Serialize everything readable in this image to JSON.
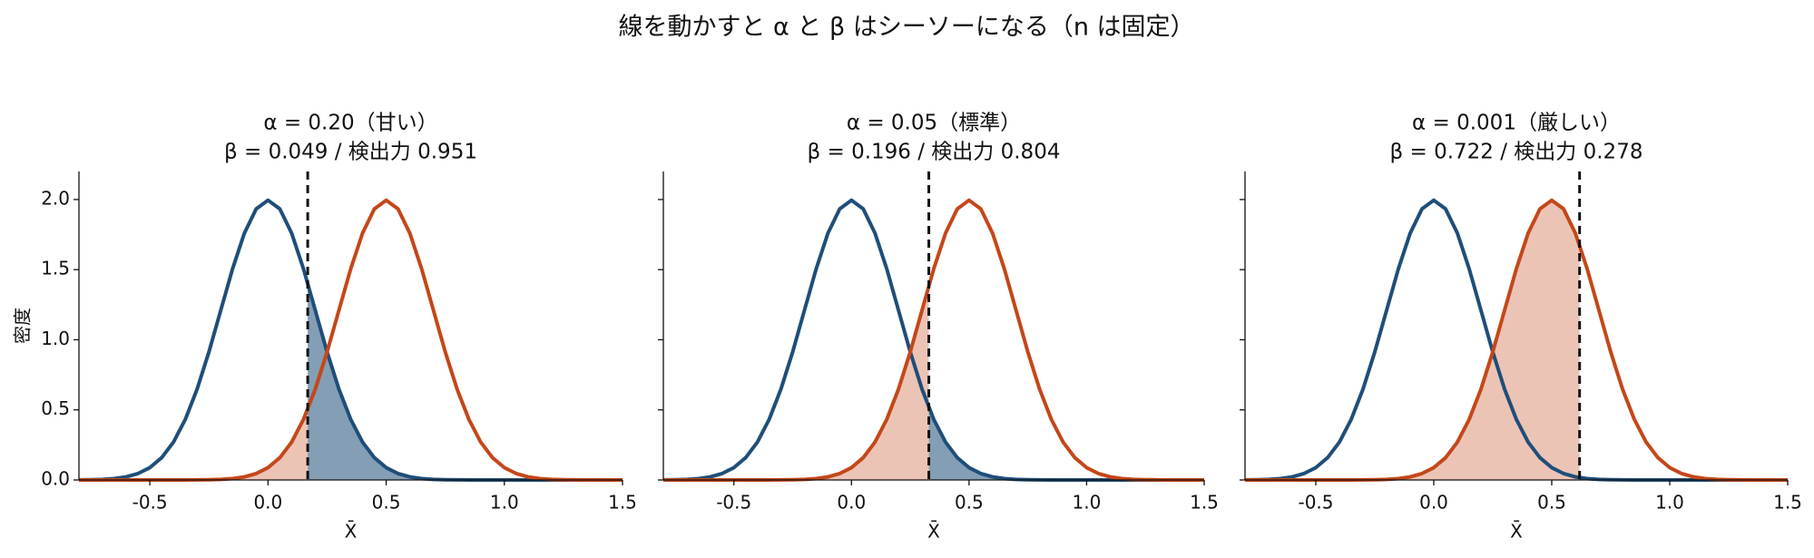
{
  "title": "線を動かすと α と β はシーソーになる（n は固定）",
  "chart_data": [
    {
      "type": "line",
      "title": [
        "α = 0.20（甘い）",
        "β = 0.049 / 検出力 0.951"
      ],
      "ylabel": "密度",
      "xlabel": "X̄",
      "x": [
        -0.8,
        -0.75,
        -0.7,
        -0.65,
        -0.6,
        -0.55,
        -0.5,
        -0.45,
        -0.4,
        -0.35,
        -0.3,
        -0.25,
        -0.2,
        -0.15,
        -0.1,
        -0.05,
        0,
        0.05,
        0.1,
        0.15,
        0.2,
        0.25,
        0.3,
        0.35,
        0.4,
        0.45,
        0.5,
        0.55,
        0.6,
        0.65,
        0.7,
        0.75,
        0.8,
        0.85,
        0.9,
        0.95,
        1,
        1.05,
        1.1,
        1.15,
        1.2,
        1.25,
        1.3,
        1.35,
        1.4,
        1.45,
        1.5
      ],
      "series": [
        {
          "color": "#1f4e79",
          "values": [
            0.001,
            0.002,
            0.004,
            0.01,
            0.022,
            0.046,
            0.088,
            0.159,
            0.27,
            0.432,
            0.648,
            0.913,
            1.21,
            1.506,
            1.76,
            1.933,
            1.995,
            1.933,
            1.76,
            1.506,
            1.21,
            0.913,
            0.648,
            0.432,
            0.27,
            0.159,
            0.088,
            0.046,
            0.022,
            0.01,
            0.004,
            0.002,
            0.001,
            0,
            0,
            0,
            0,
            0,
            0,
            0,
            0,
            0,
            0,
            0,
            0,
            0,
            0
          ]
        },
        {
          "color": "#c4471a",
          "values": [
            0,
            0,
            0,
            0,
            0,
            0,
            0,
            0,
            0,
            0,
            0.001,
            0.002,
            0.004,
            0.01,
            0.022,
            0.046,
            0.088,
            0.159,
            0.27,
            0.432,
            0.648,
            0.913,
            1.21,
            1.506,
            1.76,
            1.933,
            1.995,
            1.933,
            1.76,
            1.506,
            1.21,
            0.913,
            0.648,
            0.432,
            0.27,
            0.159,
            0.088,
            0.046,
            0.022,
            0.01,
            0.004,
            0.002,
            0.001,
            0,
            0,
            0,
            0
          ]
        }
      ],
      "threshold": 0.168,
      "xlim": [
        -0.8,
        1.5
      ],
      "xticks": [
        -0.5,
        {
          "value": 0,
          "label": "0.0"
        },
        0.5,
        {
          "value": 1,
          "label": "1.0"
        },
        1.5
      ],
      "ylim": [
        0,
        2.2
      ],
      "yticks": [
        {
          "value": 0,
          "label": "0.0"
        },
        0.5,
        {
          "value": 1,
          "label": "1.0"
        },
        1.5,
        {
          "value": 2,
          "label": "2.0"
        }
      ]
    },
    {
      "type": "line",
      "title": [
        "α = 0.05（標準）",
        "β = 0.196 / 検出力 0.804"
      ],
      "xlabel": "X̄",
      "x": [
        -0.8,
        -0.75,
        -0.7,
        -0.65,
        -0.6,
        -0.55,
        -0.5,
        -0.45,
        -0.4,
        -0.35,
        -0.3,
        -0.25,
        -0.2,
        -0.15,
        -0.1,
        -0.05,
        0,
        0.05,
        0.1,
        0.15,
        0.2,
        0.25,
        0.3,
        0.35,
        0.4,
        0.45,
        0.5,
        0.55,
        0.6,
        0.65,
        0.7,
        0.75,
        0.8,
        0.85,
        0.9,
        0.95,
        1,
        1.05,
        1.1,
        1.15,
        1.2,
        1.25,
        1.3,
        1.35,
        1.4,
        1.45,
        1.5
      ],
      "series": [
        {
          "color": "#1f4e79",
          "values": [
            0.001,
            0.002,
            0.004,
            0.01,
            0.022,
            0.046,
            0.088,
            0.159,
            0.27,
            0.432,
            0.648,
            0.913,
            1.21,
            1.506,
            1.76,
            1.933,
            1.995,
            1.933,
            1.76,
            1.506,
            1.21,
            0.913,
            0.648,
            0.432,
            0.27,
            0.159,
            0.088,
            0.046,
            0.022,
            0.01,
            0.004,
            0.002,
            0.001,
            0,
            0,
            0,
            0,
            0,
            0,
            0,
            0,
            0,
            0,
            0,
            0,
            0,
            0
          ]
        },
        {
          "color": "#c4471a",
          "values": [
            0,
            0,
            0,
            0,
            0,
            0,
            0,
            0,
            0,
            0,
            0.001,
            0.002,
            0.004,
            0.01,
            0.022,
            0.046,
            0.088,
            0.159,
            0.27,
            0.432,
            0.648,
            0.913,
            1.21,
            1.506,
            1.76,
            1.933,
            1.995,
            1.933,
            1.76,
            1.506,
            1.21,
            0.913,
            0.648,
            0.432,
            0.27,
            0.159,
            0.088,
            0.046,
            0.022,
            0.01,
            0.004,
            0.002,
            0.001,
            0,
            0,
            0,
            0
          ]
        }
      ],
      "threshold": 0.329,
      "xlim": [
        -0.8,
        1.5
      ],
      "xticks": [
        -0.5,
        {
          "value": 0,
          "label": "0.0"
        },
        0.5,
        {
          "value": 1,
          "label": "1.0"
        },
        1.5
      ],
      "ylim": [
        0,
        2.2
      ],
      "yticks": [
        0,
        0.5,
        1,
        1.5,
        2
      ]
    },
    {
      "type": "line",
      "title": [
        "α = 0.001（厳しい）",
        "β = 0.722 / 検出力 0.278"
      ],
      "xlabel": "X̄",
      "x": [
        -0.8,
        -0.75,
        -0.7,
        -0.65,
        -0.6,
        -0.55,
        -0.5,
        -0.45,
        -0.4,
        -0.35,
        -0.3,
        -0.25,
        -0.2,
        -0.15,
        -0.1,
        -0.05,
        0,
        0.05,
        0.1,
        0.15,
        0.2,
        0.25,
        0.3,
        0.35,
        0.4,
        0.45,
        0.5,
        0.55,
        0.6,
        0.65,
        0.7,
        0.75,
        0.8,
        0.85,
        0.9,
        0.95,
        1,
        1.05,
        1.1,
        1.15,
        1.2,
        1.25,
        1.3,
        1.35,
        1.4,
        1.45,
        1.5
      ],
      "series": [
        {
          "color": "#1f4e79",
          "values": [
            0.001,
            0.002,
            0.004,
            0.01,
            0.022,
            0.046,
            0.088,
            0.159,
            0.27,
            0.432,
            0.648,
            0.913,
            1.21,
            1.506,
            1.76,
            1.933,
            1.995,
            1.933,
            1.76,
            1.506,
            1.21,
            0.913,
            0.648,
            0.432,
            0.27,
            0.159,
            0.088,
            0.046,
            0.022,
            0.01,
            0.004,
            0.002,
            0.001,
            0,
            0,
            0,
            0,
            0,
            0,
            0,
            0,
            0,
            0,
            0,
            0,
            0,
            0
          ]
        },
        {
          "color": "#c4471a",
          "values": [
            0,
            0,
            0,
            0,
            0,
            0,
            0,
            0,
            0,
            0,
            0.001,
            0.002,
            0.004,
            0.01,
            0.022,
            0.046,
            0.088,
            0.159,
            0.27,
            0.432,
            0.648,
            0.913,
            1.21,
            1.506,
            1.76,
            1.933,
            1.995,
            1.933,
            1.76,
            1.506,
            1.21,
            0.913,
            0.648,
            0.432,
            0.27,
            0.159,
            0.088,
            0.046,
            0.022,
            0.01,
            0.004,
            0.002,
            0.001,
            0,
            0,
            0,
            0
          ]
        }
      ],
      "threshold": 0.618,
      "xlim": [
        -0.8,
        1.5
      ],
      "xticks": [
        -0.5,
        {
          "value": 0,
          "label": "0.0"
        },
        0.5,
        {
          "value": 1,
          "label": "1.0"
        },
        1.5
      ],
      "ylim": [
        0,
        2.2
      ],
      "yticks": [
        0,
        0.5,
        1,
        1.5,
        2
      ]
    }
  ]
}
